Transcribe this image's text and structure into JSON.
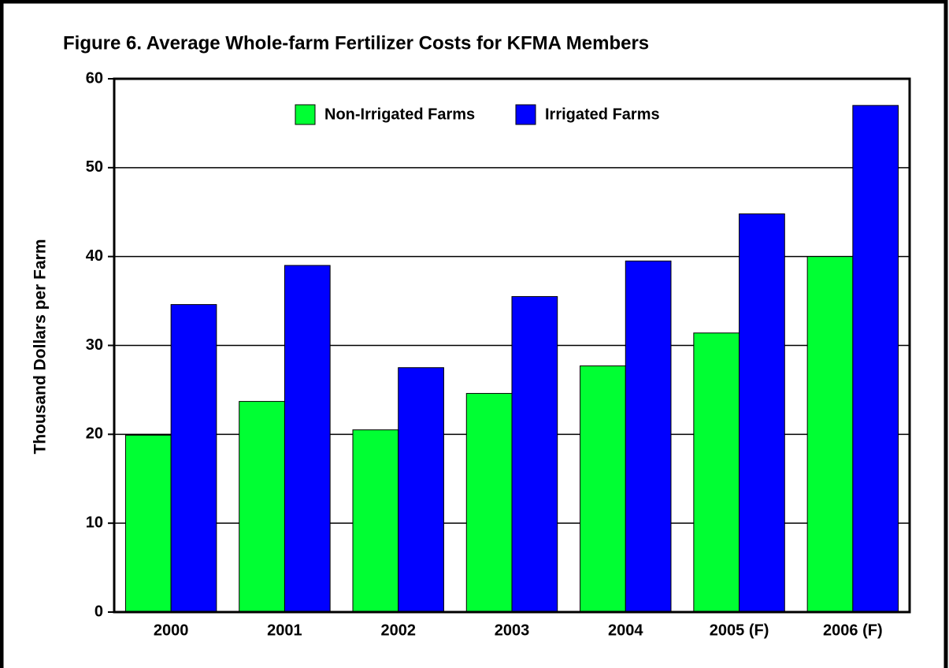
{
  "chart_data": {
    "type": "bar",
    "title": "Figure 6.  Average Whole-farm Fertilizer Costs for KFMA Members",
    "y_label": "Thousand Dollars per Farm",
    "categories": [
      "2000",
      "2001",
      "2002",
      "2003",
      "2004",
      "2005 (F)",
      "2006 (F)"
    ],
    "series": [
      {
        "name": "Non-Irrigated Farms",
        "color": "#00ff33",
        "values": [
          19.9,
          23.7,
          20.5,
          24.6,
          27.7,
          31.4,
          40
        ]
      },
      {
        "name": "Irrigated Farms",
        "color": "#0000ff",
        "values": [
          34.6,
          39.0,
          27.5,
          35.5,
          39.5,
          44.8,
          57
        ]
      }
    ],
    "ylim": [
      0,
      60
    ],
    "yticks": [
      0,
      10,
      20,
      30,
      40,
      50,
      60
    ],
    "grid": true,
    "legend": "top"
  }
}
